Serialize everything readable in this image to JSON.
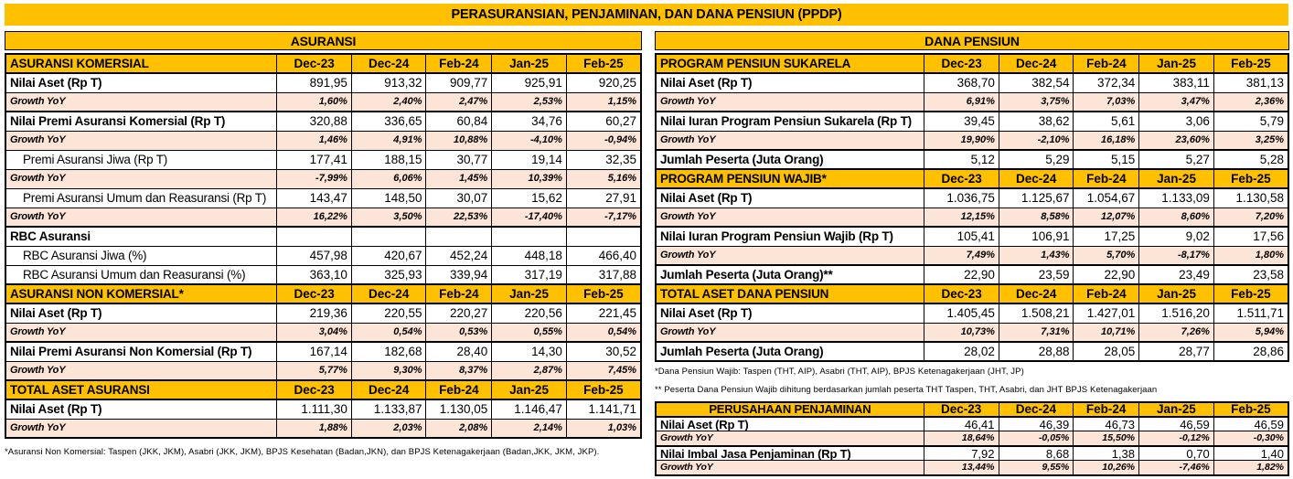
{
  "title": "PERASURANSIAN, PENJAMINAN, DAN DANA PENSIUN (PPDP)",
  "columns": [
    "Dec-23",
    "Dec-24",
    "Feb-24",
    "Jan-25",
    "Feb-25"
  ],
  "colors": {
    "header_bg": "#FFC000",
    "growth_bg": "#FCE4D6",
    "border": "#000000",
    "text": "#000000"
  },
  "asuransi": {
    "title": "ASURANSI",
    "rows": [
      {
        "type": "header",
        "label": "ASURANSI KOMERSIAL"
      },
      {
        "type": "data",
        "label": "Nilai Aset (Rp T)",
        "values": [
          "891,95",
          "913,32",
          "909,77",
          "925,91",
          "920,25"
        ]
      },
      {
        "type": "growth",
        "label": "Growth YoY",
        "values": [
          "1,60%",
          "2,40%",
          "2,47%",
          "2,53%",
          "1,15%"
        ]
      },
      {
        "type": "data",
        "label": "Nilai Premi Asuransi Komersial (Rp T)",
        "values": [
          "320,88",
          "336,65",
          "60,84",
          "34,76",
          "60,27"
        ]
      },
      {
        "type": "growth",
        "label": "Growth YoY",
        "values": [
          "1,46%",
          "4,91%",
          "10,88%",
          "-4,10%",
          "-0,94%"
        ]
      },
      {
        "type": "subdata",
        "label": "Premi Asuransi Jiwa (Rp T)",
        "values": [
          "177,41",
          "188,15",
          "30,77",
          "19,14",
          "32,35"
        ]
      },
      {
        "type": "growth",
        "label": "Growth YoY",
        "values": [
          "-7,99%",
          "6,06%",
          "1,45%",
          "10,39%",
          "5,16%"
        ]
      },
      {
        "type": "subdata",
        "label": "Premi Asuransi Umum dan Reasuransi (Rp T)",
        "values": [
          "143,47",
          "148,50",
          "30,07",
          "15,62",
          "27,91"
        ]
      },
      {
        "type": "growth",
        "label": "Growth YoY",
        "values": [
          "16,22%",
          "3,50%",
          "22,53%",
          "-17,40%",
          "-7,17%"
        ]
      },
      {
        "type": "data",
        "label": "RBC Asuransi"
      },
      {
        "type": "subdata",
        "label": "RBC Asuransi Jiwa (%)",
        "values": [
          "457,98",
          "420,67",
          "452,24",
          "448,18",
          "466,40"
        ]
      },
      {
        "type": "subdata",
        "label": "RBC Asuransi Umum dan Reasuransi (%)",
        "values": [
          "363,10",
          "325,93",
          "339,94",
          "317,19",
          "317,88"
        ]
      },
      {
        "type": "header",
        "label": "ASURANSI NON KOMERSIAL*"
      },
      {
        "type": "data",
        "label": "Nilai Aset (Rp T)",
        "values": [
          "219,36",
          "220,55",
          "220,27",
          "220,56",
          "221,45"
        ]
      },
      {
        "type": "growth",
        "label": "Growth YoY",
        "values": [
          "3,04%",
          "0,54%",
          "0,53%",
          "0,55%",
          "0,54%"
        ]
      },
      {
        "type": "data",
        "label": "Nilai Premi Asuransi Non Komersial (Rp T)",
        "values": [
          "167,14",
          "182,68",
          "28,40",
          "14,30",
          "30,52"
        ]
      },
      {
        "type": "growth",
        "label": "Growth YoY",
        "values": [
          "5,77%",
          "9,30%",
          "8,37%",
          "2,87%",
          "7,45%"
        ]
      },
      {
        "type": "header",
        "label": "TOTAL ASET ASURANSI"
      },
      {
        "type": "data",
        "label": "Nilai Aset (Rp T)",
        "values": [
          "1.111,30",
          "1.133,87",
          "1.130,05",
          "1.146,47",
          "1.141,71"
        ]
      },
      {
        "type": "growth",
        "label": "Growth YoY",
        "values": [
          "1,88%",
          "2,03%",
          "2,08%",
          "2,14%",
          "1,03%"
        ]
      }
    ],
    "footnote": "*Asuransi Non Komersial: Taspen (JKK, JKM), Asabri (JKK, JKM), BPJS Kesehatan (Badan,JKN), dan BPJS Ketenagakerjaan (Badan,JKK, JKM, JKP)."
  },
  "dana_pensiun": {
    "title": "DANA PENSIUN",
    "rows": [
      {
        "type": "header",
        "label": "PROGRAM PENSIUN SUKARELA"
      },
      {
        "type": "data",
        "label": "Nilai Aset (Rp T)",
        "values": [
          "368,70",
          "382,54",
          "372,34",
          "383,11",
          "381,13"
        ]
      },
      {
        "type": "growth",
        "label": "Growth YoY",
        "values": [
          "6,91%",
          "3,75%",
          "7,03%",
          "3,47%",
          "2,36%"
        ]
      },
      {
        "type": "data",
        "label": "Nilai Iuran Program Pensiun Sukarela (Rp T)",
        "values": [
          "39,45",
          "38,62",
          "5,61",
          "3,06",
          "5,79"
        ]
      },
      {
        "type": "growth",
        "label": "Growth YoY",
        "values": [
          "19,90%",
          "-2,10%",
          "16,18%",
          "23,60%",
          "3,25%"
        ]
      },
      {
        "type": "data",
        "label": "Jumlah Peserta (Juta Orang)",
        "values": [
          "5,12",
          "5,29",
          "5,15",
          "5,27",
          "5,28"
        ]
      },
      {
        "type": "header",
        "label": "PROGRAM PENSIUN WAJIB*"
      },
      {
        "type": "data",
        "label": "Nilai Aset (Rp T)",
        "values": [
          "1.036,75",
          "1.125,67",
          "1.054,67",
          "1.133,09",
          "1.130,58"
        ]
      },
      {
        "type": "growth",
        "label": "Growth YoY",
        "values": [
          "12,15%",
          "8,58%",
          "12,07%",
          "8,60%",
          "7,20%"
        ]
      },
      {
        "type": "data",
        "label": "Nilai Iuran Program Pensiun Wajib (Rp T)",
        "values": [
          "105,41",
          "106,91",
          "17,25",
          "9,02",
          "17,56"
        ]
      },
      {
        "type": "growth",
        "label": "Growth YoY",
        "values": [
          "7,49%",
          "1,43%",
          "5,70%",
          "-8,17%",
          "1,80%"
        ]
      },
      {
        "type": "data",
        "label": "Jumlah Peserta (Juta Orang)**",
        "values": [
          "22,90",
          "23,59",
          "22,90",
          "23,49",
          "23,58"
        ]
      },
      {
        "type": "header",
        "label": "TOTAL ASET DANA PENSIUN"
      },
      {
        "type": "data",
        "label": "Nilai Aset (Rp T)",
        "values": [
          "1.405,45",
          "1.508,21",
          "1.427,01",
          "1.516,20",
          "1.511,71"
        ]
      },
      {
        "type": "growth",
        "label": "Growth YoY",
        "values": [
          "10,73%",
          "7,31%",
          "10,71%",
          "7,26%",
          "5,94%"
        ]
      },
      {
        "type": "data",
        "label": "Jumlah Peserta (Juta Orang)",
        "values": [
          "28,02",
          "28,88",
          "28,05",
          "28,77",
          "28,86"
        ]
      }
    ],
    "footnotes": [
      "*Dana Pensiun Wajib: Taspen (THT, AIP), Asabri (THT, AIP), BPJS Ketenagakerjaan (JHT, JP)",
      "** Peserta Dana Pensiun Wajib dihitung berdasarkan jumlah peserta THT Taspen, THT, Asabri, dan JHT BPJS Ketenagakerjaan"
    ]
  },
  "penjaminan": {
    "rows": [
      {
        "type": "header",
        "label": "PERUSAHAAN PENJAMINAN",
        "center": true
      },
      {
        "type": "data",
        "label": "Nilai Aset (Rp T)",
        "values": [
          "46,41",
          "46,39",
          "46,73",
          "46,59",
          "46,59"
        ]
      },
      {
        "type": "growth",
        "label": "Growth YoY",
        "values": [
          "18,64%",
          "-0,05%",
          "15,50%",
          "-0,12%",
          "-0,30%"
        ]
      },
      {
        "type": "data",
        "label": "Nilai Imbal Jasa Penjaminan (Rp T)",
        "values": [
          "7,92",
          "8,68",
          "1,38",
          "0,70",
          "1,40"
        ]
      },
      {
        "type": "growth",
        "label": "Growth YoY",
        "values": [
          "13,44%",
          "9,55%",
          "10,26%",
          "-7,46%",
          "1,82%"
        ]
      }
    ]
  }
}
